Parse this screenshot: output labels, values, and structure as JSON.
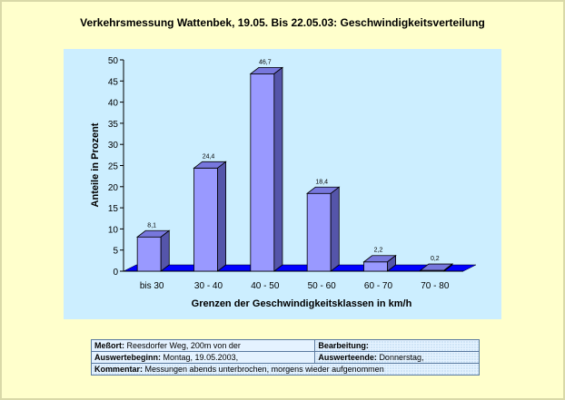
{
  "chart_data": {
    "type": "bar",
    "title": "Verkehrsmessung Wattenbek, 19.05. Bis 22.05.03: Geschwindigkeitsverteilung",
    "xlabel": "Grenzen der Geschwindigkeitsklassen in km/h",
    "ylabel": "Anteile in Prozent",
    "categories": [
      "bis 30",
      "30 - 40",
      "40 - 50",
      "50 - 60",
      "60 - 70",
      "70 - 80"
    ],
    "values": [
      8.1,
      24.4,
      46.7,
      18.4,
      2.2,
      0.2
    ],
    "data_labels": [
      "8,1",
      "24,4",
      "46,7",
      "18,4",
      "2,2",
      "0,2"
    ],
    "ylim": [
      0,
      50
    ],
    "yticks": [
      "0",
      "5",
      "10",
      "15",
      "20",
      "25",
      "30",
      "35",
      "40",
      "45",
      "50"
    ],
    "grid": false,
    "legend": "none",
    "bar_color": "#9999ff",
    "floor_color": "#0000ff"
  },
  "info": {
    "messort_label": "Meßort:",
    "messort_value": "Reesdorfer Weg, 200m von der",
    "bearbeitung_label": "Bearbeitung:",
    "bearbeitung_value": "",
    "auswertebeginn_label": "Auswertebeginn:",
    "auswertebeginn_value": "Montag, 19.05.2003,",
    "auswerteende_label": "Auswerteende:",
    "auswerteende_value": "Donnerstag,",
    "kommentar_label": "Kommentar:",
    "kommentar_value": "Messungen abends unterbrochen, morgens wieder aufgenommen"
  }
}
